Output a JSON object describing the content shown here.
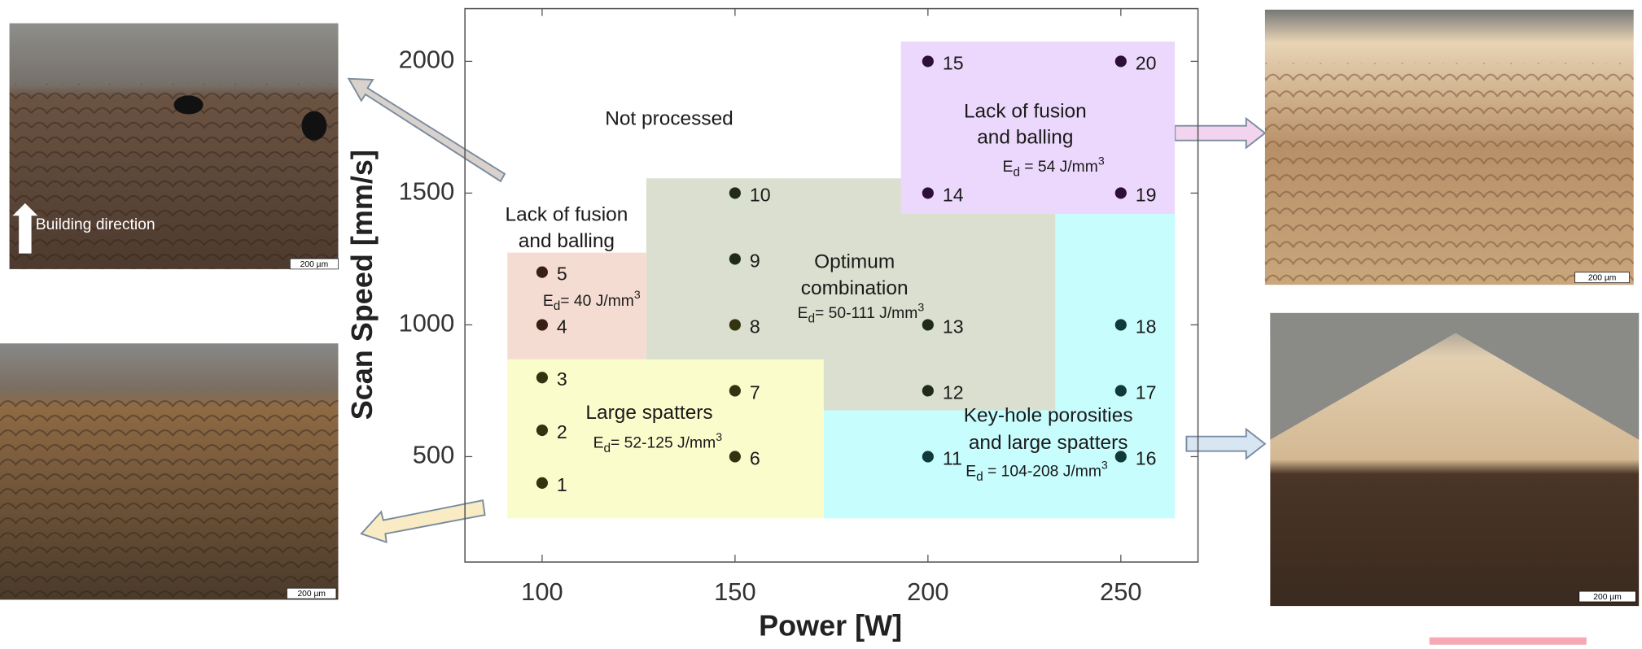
{
  "chart_data": {
    "type": "scatter",
    "xlabel": "Power [W]",
    "ylabel": "Scan Speed [mm/s]",
    "xlim": [
      80,
      270
    ],
    "ylim": [
      100,
      2200
    ],
    "xticks": [
      100,
      150,
      200,
      250
    ],
    "yticks": [
      500,
      1000,
      1500,
      2000
    ],
    "x": [
      100,
      100,
      100,
      100,
      100,
      150,
      150,
      150,
      150,
      150,
      200,
      200,
      200,
      200,
      200,
      250,
      250,
      250,
      250,
      250
    ],
    "values": [
      400,
      600,
      800,
      1000,
      1200,
      500,
      750,
      1000,
      1250,
      1500,
      500,
      750,
      1000,
      1500,
      2000,
      500,
      750,
      1000,
      1500,
      2000
    ],
    "point_labels": [
      "1",
      "2",
      "3",
      "4",
      "5",
      "6",
      "7",
      "8",
      "9",
      "10",
      "11",
      "12",
      "13",
      "14",
      "15",
      "16",
      "17",
      "18",
      "19",
      "20"
    ],
    "colors": [
      "#33330f",
      "#33330f",
      "#33330f",
      "#3a1f14",
      "#3a1f14",
      "#33330f",
      "#33330f",
      "#33330f",
      "#1f2a1a",
      "#1f2a1a",
      "#0f3a3a",
      "#1f2a1a",
      "#1f2a1a",
      "#2d0f3a",
      "#2d0f3a",
      "#0f3a3a",
      "#0f3a3a",
      "#0f3a3a",
      "#2d0f3a",
      "#2d0f3a"
    ],
    "regions": [
      {
        "xrange": [
          173,
          264
        ],
        "yrange": [
          266,
          1421
        ],
        "color": "#c8fdfd",
        "label": [
          "Key-hole porosities",
          "and large spatters"
        ],
        "energy": {
          "symbol": "E",
          "subscript": "d",
          "text": " = 104-208 J/mm",
          "superscript": "3"
        }
      },
      {
        "xrange": [
          127,
          233
        ],
        "yrange": [
          676,
          1556
        ],
        "color": "#dadfcf",
        "label": [
          "Optimum",
          "combination"
        ],
        "energy": {
          "symbol": "E",
          "subscript": "d",
          "text": "= 50-111 J/mm",
          "superscript": "3"
        }
      },
      {
        "xrange": [
          91,
          127
        ],
        "yrange": [
          869,
          1274
        ],
        "color": "#f5dcd2",
        "label": [
          "Lack of fusion",
          "and balling"
        ],
        "energy": {
          "symbol": "E",
          "subscript": "d",
          "text": "= 40 J/mm",
          "superscript": "3"
        }
      },
      {
        "xrange": [
          91,
          173
        ],
        "yrange": [
          266,
          869
        ],
        "color": "#fbfccc",
        "label": [
          "Large spatters"
        ],
        "energy": {
          "symbol": "E",
          "subscript": "d",
          "text": "= 52-125 J/mm",
          "superscript": "3"
        }
      },
      {
        "xrange": [
          193,
          264
        ],
        "yrange": [
          1421,
          2075
        ],
        "color": "#ecd8fc",
        "label": [
          "Lack of fusion",
          "and balling"
        ],
        "energy": {
          "symbol": "E",
          "subscript": "d",
          "text": " = 54 J/mm",
          "superscript": "3"
        }
      }
    ],
    "annotations": [
      "Not processed"
    ]
  },
  "images": [
    {
      "caption": "Building direction",
      "scale": "200 µm"
    },
    {
      "scale": "200 µm"
    },
    {
      "scale": "200 µm"
    },
    {
      "scale": "200 µm"
    }
  ]
}
